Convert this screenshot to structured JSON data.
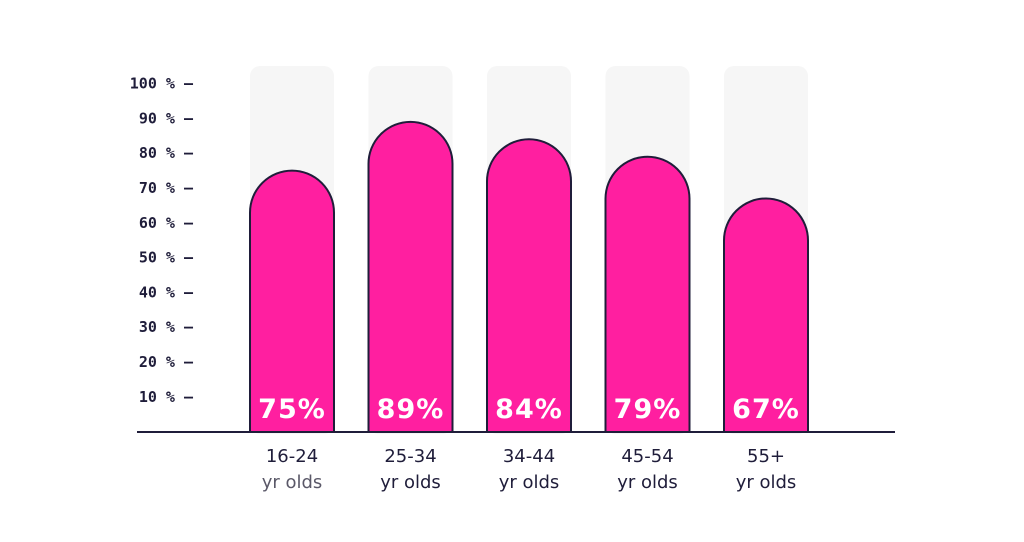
{
  "chart_data": {
    "type": "bar",
    "categories": [
      [
        "16-24",
        "yr olds"
      ],
      [
        "25-34",
        "yr olds"
      ],
      [
        "34-44",
        "yr olds"
      ],
      [
        "45-54",
        "yr olds"
      ],
      [
        "55+",
        "yr olds"
      ]
    ],
    "values": [
      75,
      89,
      84,
      79,
      67
    ],
    "value_labels": [
      "75%",
      "89%",
      "84%",
      "79%",
      "67%"
    ],
    "y_ticks": [
      10,
      20,
      30,
      40,
      50,
      60,
      70,
      80,
      90,
      100
    ],
    "y_tick_labels": [
      "10 % —",
      "20 % —",
      "30 % —",
      "40 % —",
      "50 % —",
      "60 % —",
      "70 % —",
      "80 % —",
      "90 % —",
      "100 % —"
    ],
    "ylim": [
      0,
      100
    ],
    "title": "",
    "xlabel": "",
    "ylabel": "",
    "grid": false,
    "colors": {
      "bar": "#ff1fa0",
      "bar_outline": "#1f1d3a",
      "track": "#f6f6f6",
      "axis": "#1f1d3a",
      "text": "#1f1d3a",
      "value_text": "#ffffff"
    }
  }
}
